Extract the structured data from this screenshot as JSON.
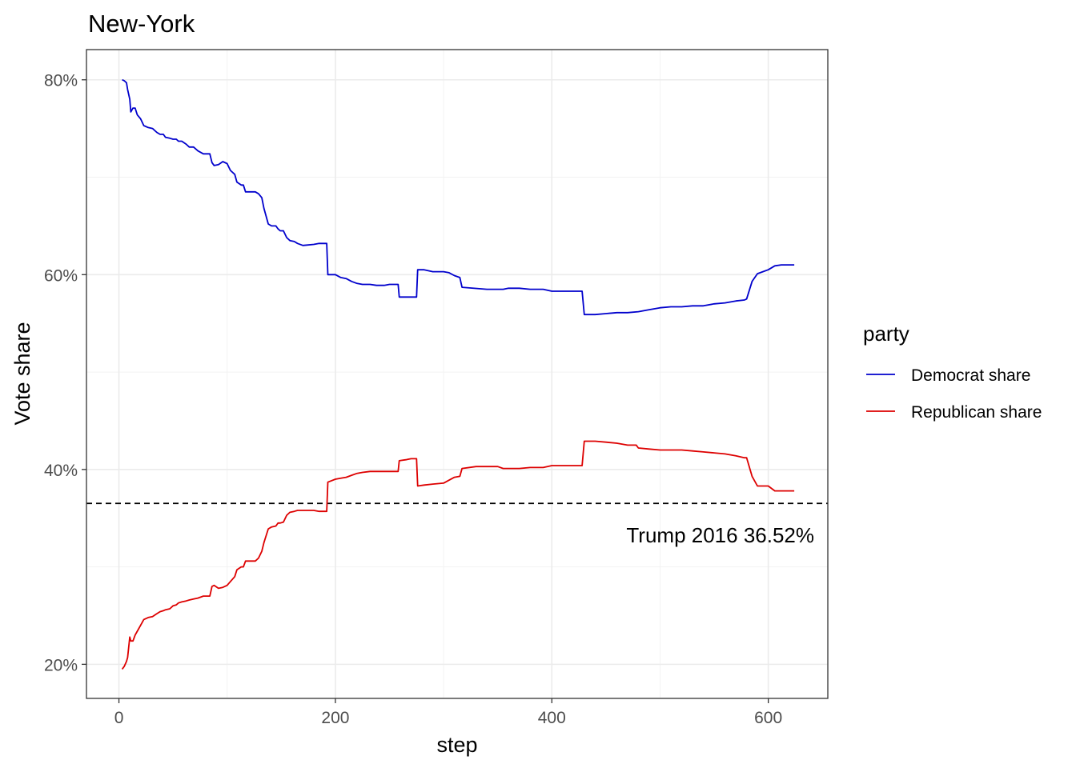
{
  "chart_data": {
    "type": "line",
    "title": "New-York",
    "xlabel": "step",
    "ylabel": "Vote share",
    "xlim": [
      -30,
      655
    ],
    "ylim": [
      0.165,
      0.831
    ],
    "x_ticks": [
      0,
      200,
      400,
      600
    ],
    "x_tick_labels": [
      "0",
      "200",
      "400",
      "600"
    ],
    "y_ticks": [
      0.2,
      0.4,
      0.6,
      0.8
    ],
    "y_tick_labels": [
      "20%",
      "40%",
      "60%",
      "80%"
    ],
    "y_minor_ticks": [
      0.3,
      0.5,
      0.7
    ],
    "x_minor_ticks": [
      100,
      300,
      500
    ],
    "grid": true,
    "legend": {
      "title": "party",
      "position": "right",
      "entries": [
        "Democrat share",
        "Republican share"
      ]
    },
    "reference_line": {
      "y": 0.3652,
      "style": "dashed",
      "color": "#000000",
      "label": "Trump 2016 36.52%"
    },
    "series": [
      {
        "name": "Democrat share",
        "color": "#0000cc",
        "points": [
          [
            3,
            0.8
          ],
          [
            5,
            0.799
          ],
          [
            7,
            0.797
          ],
          [
            8,
            0.79
          ],
          [
            10,
            0.78
          ],
          [
            11,
            0.767
          ],
          [
            13,
            0.771
          ],
          [
            15,
            0.771
          ],
          [
            17,
            0.764
          ],
          [
            20,
            0.76
          ],
          [
            23,
            0.753
          ],
          [
            27,
            0.751
          ],
          [
            31,
            0.75
          ],
          [
            35,
            0.746
          ],
          [
            38,
            0.744
          ],
          [
            41,
            0.744
          ],
          [
            43,
            0.741
          ],
          [
            47,
            0.74
          ],
          [
            50,
            0.739
          ],
          [
            53,
            0.739
          ],
          [
            55,
            0.737
          ],
          [
            58,
            0.737
          ],
          [
            62,
            0.734
          ],
          [
            65,
            0.731
          ],
          [
            69,
            0.731
          ],
          [
            73,
            0.727
          ],
          [
            78,
            0.724
          ],
          [
            84,
            0.724
          ],
          [
            86,
            0.715
          ],
          [
            88,
            0.712
          ],
          [
            92,
            0.713
          ],
          [
            96,
            0.716
          ],
          [
            100,
            0.714
          ],
          [
            103,
            0.707
          ],
          [
            107,
            0.703
          ],
          [
            109,
            0.695
          ],
          [
            113,
            0.692
          ],
          [
            115,
            0.692
          ],
          [
            117,
            0.685
          ],
          [
            123,
            0.685
          ],
          [
            126,
            0.685
          ],
          [
            129,
            0.683
          ],
          [
            132,
            0.679
          ],
          [
            134,
            0.668
          ],
          [
            136,
            0.66
          ],
          [
            138,
            0.652
          ],
          [
            141,
            0.65
          ],
          [
            145,
            0.65
          ],
          [
            147,
            0.647
          ],
          [
            149,
            0.645
          ],
          [
            152,
            0.645
          ],
          [
            155,
            0.638
          ],
          [
            158,
            0.635
          ],
          [
            162,
            0.634
          ],
          [
            165,
            0.632
          ],
          [
            170,
            0.63
          ],
          [
            180,
            0.631
          ],
          [
            185,
            0.632
          ],
          [
            192,
            0.632
          ],
          [
            193,
            0.6
          ],
          [
            200,
            0.6
          ],
          [
            205,
            0.597
          ],
          [
            210,
            0.596
          ],
          [
            215,
            0.593
          ],
          [
            220,
            0.591
          ],
          [
            225,
            0.59
          ],
          [
            232,
            0.59
          ],
          [
            238,
            0.589
          ],
          [
            245,
            0.589
          ],
          [
            250,
            0.59
          ],
          [
            255,
            0.59
          ],
          [
            258,
            0.59
          ],
          [
            259,
            0.577
          ],
          [
            275,
            0.577
          ],
          [
            276,
            0.605
          ],
          [
            282,
            0.605
          ],
          [
            290,
            0.603
          ],
          [
            300,
            0.603
          ],
          [
            305,
            0.602
          ],
          [
            310,
            0.599
          ],
          [
            315,
            0.597
          ],
          [
            317,
            0.587
          ],
          [
            340,
            0.585
          ],
          [
            355,
            0.585
          ],
          [
            360,
            0.586
          ],
          [
            370,
            0.586
          ],
          [
            380,
            0.585
          ],
          [
            392,
            0.585
          ],
          [
            400,
            0.583
          ],
          [
            410,
            0.583
          ],
          [
            420,
            0.583
          ],
          [
            428,
            0.583
          ],
          [
            430,
            0.559
          ],
          [
            440,
            0.559
          ],
          [
            450,
            0.56
          ],
          [
            460,
            0.561
          ],
          [
            470,
            0.561
          ],
          [
            480,
            0.562
          ],
          [
            490,
            0.564
          ],
          [
            500,
            0.566
          ],
          [
            510,
            0.567
          ],
          [
            520,
            0.567
          ],
          [
            530,
            0.568
          ],
          [
            540,
            0.568
          ],
          [
            550,
            0.57
          ],
          [
            560,
            0.571
          ],
          [
            570,
            0.573
          ],
          [
            578,
            0.574
          ],
          [
            580,
            0.575
          ],
          [
            585,
            0.593
          ],
          [
            590,
            0.601
          ],
          [
            595,
            0.603
          ],
          [
            600,
            0.605
          ],
          [
            606,
            0.609
          ],
          [
            612,
            0.61
          ],
          [
            620,
            0.61
          ],
          [
            624,
            0.61
          ]
        ]
      },
      {
        "name": "Republican share",
        "color": "#dd0000",
        "points": [
          [
            3,
            0.195
          ],
          [
            5,
            0.198
          ],
          [
            7,
            0.203
          ],
          [
            8,
            0.207
          ],
          [
            10,
            0.228
          ],
          [
            11,
            0.224
          ],
          [
            13,
            0.224
          ],
          [
            15,
            0.23
          ],
          [
            17,
            0.234
          ],
          [
            20,
            0.24
          ],
          [
            23,
            0.246
          ],
          [
            27,
            0.248
          ],
          [
            31,
            0.249
          ],
          [
            35,
            0.252
          ],
          [
            38,
            0.254
          ],
          [
            41,
            0.255
          ],
          [
            43,
            0.256
          ],
          [
            47,
            0.257
          ],
          [
            50,
            0.26
          ],
          [
            53,
            0.261
          ],
          [
            55,
            0.263
          ],
          [
            58,
            0.264
          ],
          [
            62,
            0.265
          ],
          [
            65,
            0.266
          ],
          [
            69,
            0.267
          ],
          [
            73,
            0.268
          ],
          [
            78,
            0.27
          ],
          [
            84,
            0.27
          ],
          [
            86,
            0.28
          ],
          [
            88,
            0.281
          ],
          [
            92,
            0.278
          ],
          [
            96,
            0.279
          ],
          [
            100,
            0.281
          ],
          [
            103,
            0.285
          ],
          [
            107,
            0.29
          ],
          [
            109,
            0.297
          ],
          [
            113,
            0.3
          ],
          [
            115,
            0.3
          ],
          [
            117,
            0.306
          ],
          [
            123,
            0.306
          ],
          [
            126,
            0.306
          ],
          [
            129,
            0.309
          ],
          [
            132,
            0.316
          ],
          [
            134,
            0.325
          ],
          [
            136,
            0.332
          ],
          [
            138,
            0.339
          ],
          [
            141,
            0.341
          ],
          [
            145,
            0.342
          ],
          [
            147,
            0.345
          ],
          [
            149,
            0.345
          ],
          [
            152,
            0.346
          ],
          [
            155,
            0.353
          ],
          [
            158,
            0.356
          ],
          [
            162,
            0.357
          ],
          [
            165,
            0.358
          ],
          [
            170,
            0.358
          ],
          [
            180,
            0.358
          ],
          [
            185,
            0.357
          ],
          [
            192,
            0.357
          ],
          [
            193,
            0.387
          ],
          [
            200,
            0.39
          ],
          [
            205,
            0.391
          ],
          [
            210,
            0.392
          ],
          [
            215,
            0.394
          ],
          [
            220,
            0.396
          ],
          [
            225,
            0.397
          ],
          [
            232,
            0.398
          ],
          [
            238,
            0.398
          ],
          [
            245,
            0.398
          ],
          [
            250,
            0.398
          ],
          [
            258,
            0.398
          ],
          [
            259,
            0.409
          ],
          [
            265,
            0.41
          ],
          [
            270,
            0.411
          ],
          [
            275,
            0.411
          ],
          [
            276,
            0.383
          ],
          [
            282,
            0.384
          ],
          [
            290,
            0.385
          ],
          [
            300,
            0.386
          ],
          [
            305,
            0.389
          ],
          [
            310,
            0.392
          ],
          [
            315,
            0.393
          ],
          [
            317,
            0.401
          ],
          [
            330,
            0.403
          ],
          [
            340,
            0.403
          ],
          [
            350,
            0.403
          ],
          [
            355,
            0.401
          ],
          [
            360,
            0.401
          ],
          [
            370,
            0.401
          ],
          [
            380,
            0.402
          ],
          [
            392,
            0.402
          ],
          [
            400,
            0.404
          ],
          [
            410,
            0.404
          ],
          [
            420,
            0.404
          ],
          [
            428,
            0.404
          ],
          [
            430,
            0.429
          ],
          [
            440,
            0.429
          ],
          [
            450,
            0.428
          ],
          [
            460,
            0.427
          ],
          [
            470,
            0.425
          ],
          [
            478,
            0.425
          ],
          [
            480,
            0.422
          ],
          [
            490,
            0.421
          ],
          [
            500,
            0.42
          ],
          [
            510,
            0.42
          ],
          [
            520,
            0.42
          ],
          [
            530,
            0.419
          ],
          [
            540,
            0.418
          ],
          [
            550,
            0.417
          ],
          [
            560,
            0.416
          ],
          [
            570,
            0.414
          ],
          [
            578,
            0.412
          ],
          [
            580,
            0.412
          ],
          [
            585,
            0.393
          ],
          [
            590,
            0.383
          ],
          [
            595,
            0.383
          ],
          [
            600,
            0.383
          ],
          [
            606,
            0.378
          ],
          [
            612,
            0.378
          ],
          [
            620,
            0.378
          ],
          [
            624,
            0.378
          ]
        ]
      }
    ]
  }
}
